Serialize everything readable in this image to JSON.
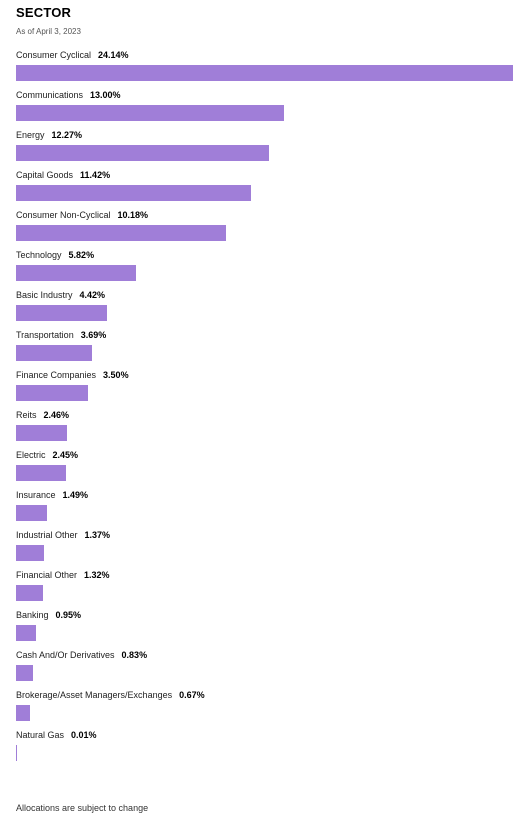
{
  "header": {
    "title": "SECTOR",
    "as_of": "As of April 3, 2023"
  },
  "footer": {
    "note": "Allocations are subject to change"
  },
  "colors": {
    "bar": "#a07ed8"
  },
  "chart_data": {
    "type": "bar",
    "orientation": "horizontal",
    "title": "SECTOR",
    "subtitle": "As of April 3, 2023",
    "categories": [
      "Consumer Cyclical",
      "Communications",
      "Energy",
      "Capital Goods",
      "Consumer Non-Cyclical",
      "Technology",
      "Basic Industry",
      "Transportation",
      "Finance Companies",
      "Reits",
      "Electric",
      "Insurance",
      "Industrial Other",
      "Financial Other",
      "Banking",
      "Cash And/Or Derivatives",
      "Brokerage/Asset Managers/Exchanges",
      "Natural Gas"
    ],
    "values": [
      24.14,
      13.0,
      12.27,
      11.42,
      10.18,
      5.82,
      4.42,
      3.69,
      3.5,
      2.46,
      2.45,
      1.49,
      1.37,
      1.32,
      0.95,
      0.83,
      0.67,
      0.01
    ],
    "value_labels": [
      "24.14%",
      "13.00%",
      "12.27%",
      "11.42%",
      "10.18%",
      "5.82%",
      "4.42%",
      "3.69%",
      "3.50%",
      "2.46%",
      "2.45%",
      "1.49%",
      "1.37%",
      "1.32%",
      "0.95%",
      "0.83%",
      "0.67%",
      "0.01%"
    ],
    "unit": "%",
    "xlim": [
      0,
      24.14
    ],
    "grid": false,
    "legend": "none"
  }
}
